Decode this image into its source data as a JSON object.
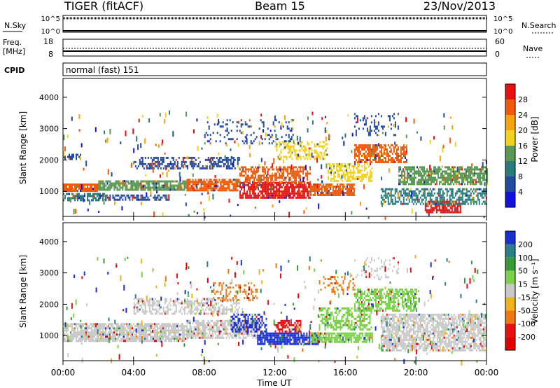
{
  "header": {
    "station": "TIGER (fitACF)",
    "beam": "Beam 15",
    "date": "23/Nov/2013"
  },
  "status_panels": {
    "nsky": {
      "label": "N.Sky",
      "right_label": "N.Search",
      "left_ticks": [
        "10^5",
        "10^0"
      ],
      "right_ticks": [
        "10^5",
        "10^0"
      ]
    },
    "freq": {
      "label_line1": "Freq.",
      "label_line2": "[MHz]",
      "right_label": "Nave",
      "left_ticks": [
        "18",
        "8"
      ],
      "right_ticks": [
        "60",
        "0"
      ]
    },
    "cpid": {
      "label": "CPID",
      "text": "normal (fast) 151"
    }
  },
  "x_axis": {
    "label": "Time UT",
    "ticks": [
      "00:00",
      "04:00",
      "08:00",
      "12:00",
      "16:00",
      "20:00",
      "00:00"
    ]
  },
  "chart_data": [
    {
      "type": "heatmap",
      "name": "power",
      "ylabel": "Slant Range [km]",
      "yticks": [
        1000,
        2000,
        3000,
        4000
      ],
      "ylim": [
        200,
        4600
      ],
      "xlim_hours": [
        0,
        24
      ],
      "colorbar": {
        "label": "Power [dB]",
        "ticks": [
          "28",
          "24",
          "20",
          "16",
          "12",
          "8",
          "4"
        ],
        "colors": [
          "#e81010",
          "#f05a0a",
          "#f7a20f",
          "#f2d21a",
          "#5b9a55",
          "#2b7b7e",
          "#224aa0",
          "#1111e0"
        ]
      },
      "regions": [
        {
          "t0": 0.0,
          "t1": 2.0,
          "r0": 1000,
          "r1": 1250,
          "level": "orange",
          "density": 0.9
        },
        {
          "t0": 0.0,
          "t1": 2.4,
          "r0": 700,
          "r1": 950,
          "level": "teal",
          "density": 0.7
        },
        {
          "t0": 0.0,
          "t1": 1.0,
          "r0": 2000,
          "r1": 2200,
          "level": "blue",
          "density": 0.5
        },
        {
          "t0": 2.0,
          "t1": 7.0,
          "r0": 1050,
          "r1": 1350,
          "level": "green",
          "density": 0.8
        },
        {
          "t0": 2.0,
          "t1": 6.0,
          "r0": 700,
          "r1": 900,
          "level": "blue",
          "density": 0.6
        },
        {
          "t0": 4.0,
          "t1": 10.0,
          "r0": 1700,
          "r1": 2100,
          "level": "blue",
          "density": 0.5
        },
        {
          "t0": 7.0,
          "t1": 10.0,
          "r0": 1000,
          "r1": 1400,
          "level": "orange",
          "density": 0.8
        },
        {
          "t0": 10.0,
          "t1": 14.0,
          "r0": 800,
          "r1": 1300,
          "level": "red",
          "density": 0.85
        },
        {
          "t0": 10.0,
          "t1": 14.0,
          "r0": 1300,
          "r1": 1800,
          "level": "orange",
          "density": 0.6
        },
        {
          "t0": 12.0,
          "t1": 15.0,
          "r0": 2000,
          "r1": 2600,
          "level": "yellow",
          "density": 0.4
        },
        {
          "t0": 14.0,
          "t1": 16.5,
          "r0": 850,
          "r1": 1250,
          "level": "orange",
          "density": 0.8
        },
        {
          "t0": 15.0,
          "t1": 17.5,
          "r0": 1300,
          "r1": 1900,
          "level": "yellow",
          "density": 0.6
        },
        {
          "t0": 16.5,
          "t1": 19.5,
          "r0": 1900,
          "r1": 2500,
          "level": "orange",
          "density": 0.7
        },
        {
          "t0": 19.0,
          "t1": 24.0,
          "r0": 1200,
          "r1": 1800,
          "level": "green",
          "density": 0.7
        },
        {
          "t0": 20.5,
          "t1": 22.5,
          "r0": 350,
          "r1": 700,
          "level": "red",
          "density": 0.8
        },
        {
          "t0": 18.0,
          "t1": 24.0,
          "r0": 600,
          "r1": 1100,
          "level": "teal",
          "density": 0.6
        },
        {
          "t0": 16.5,
          "t1": 19.0,
          "r0": 2800,
          "r1": 3500,
          "level": "blue",
          "density": 0.2
        },
        {
          "t0": 8.0,
          "t1": 13.0,
          "r0": 2500,
          "r1": 3300,
          "level": "blue",
          "density": 0.15
        }
      ]
    },
    {
      "type": "heatmap",
      "name": "velocity",
      "ylabel": "Slant Range [km]",
      "yticks": [
        1000,
        2000,
        3000,
        4000
      ],
      "ylim": [
        200,
        4600
      ],
      "xlim_hours": [
        0,
        24
      ],
      "colorbar": {
        "label": "Velocity [m s⁻¹]",
        "ticks": [
          "200",
          "100",
          "50",
          "15",
          "-15",
          "-50",
          "-100",
          "-200"
        ],
        "colors": [
          "#1a2fcf",
          "#2a7f88",
          "#3a9a3a",
          "#7cd14a",
          "#c8c8c8",
          "#f2b21a",
          "#f07810",
          "#e81010",
          "#e00000"
        ]
      },
      "regions": [
        {
          "t0": 0.0,
          "t1": 7.0,
          "r0": 800,
          "r1": 1400,
          "level": "grey",
          "density": 0.85
        },
        {
          "t0": 7.0,
          "t1": 11.0,
          "r0": 900,
          "r1": 1500,
          "level": "grey",
          "density": 0.7
        },
        {
          "t0": 4.0,
          "t1": 10.0,
          "r0": 1700,
          "r1": 2200,
          "level": "grey",
          "density": 0.5
        },
        {
          "t0": 9.5,
          "t1": 11.5,
          "r0": 1100,
          "r1": 1700,
          "level": "blue",
          "density": 0.5
        },
        {
          "t0": 11.0,
          "t1": 14.5,
          "r0": 700,
          "r1": 1100,
          "level": "blue",
          "density": 0.85
        },
        {
          "t0": 12.0,
          "t1": 13.5,
          "r0": 1100,
          "r1": 1500,
          "level": "red",
          "density": 0.6
        },
        {
          "t0": 14.0,
          "t1": 17.5,
          "r0": 800,
          "r1": 1100,
          "level": "green",
          "density": 0.8
        },
        {
          "t0": 14.5,
          "t1": 17.5,
          "r0": 1200,
          "r1": 1900,
          "level": "green",
          "density": 0.5
        },
        {
          "t0": 16.5,
          "t1": 20.0,
          "r0": 1800,
          "r1": 2500,
          "level": "green",
          "density": 0.6
        },
        {
          "t0": 18.0,
          "t1": 24.0,
          "r0": 500,
          "r1": 1700,
          "level": "grey",
          "density": 0.75
        },
        {
          "t0": 8.5,
          "t1": 11.0,
          "r0": 2100,
          "r1": 2700,
          "level": "orange",
          "density": 0.3
        },
        {
          "t0": 14.5,
          "t1": 16.5,
          "r0": 2300,
          "r1": 2900,
          "level": "orange",
          "density": 0.25
        },
        {
          "t0": 16.5,
          "t1": 19.0,
          "r0": 2800,
          "r1": 3500,
          "level": "grey",
          "density": 0.15
        }
      ]
    }
  ]
}
